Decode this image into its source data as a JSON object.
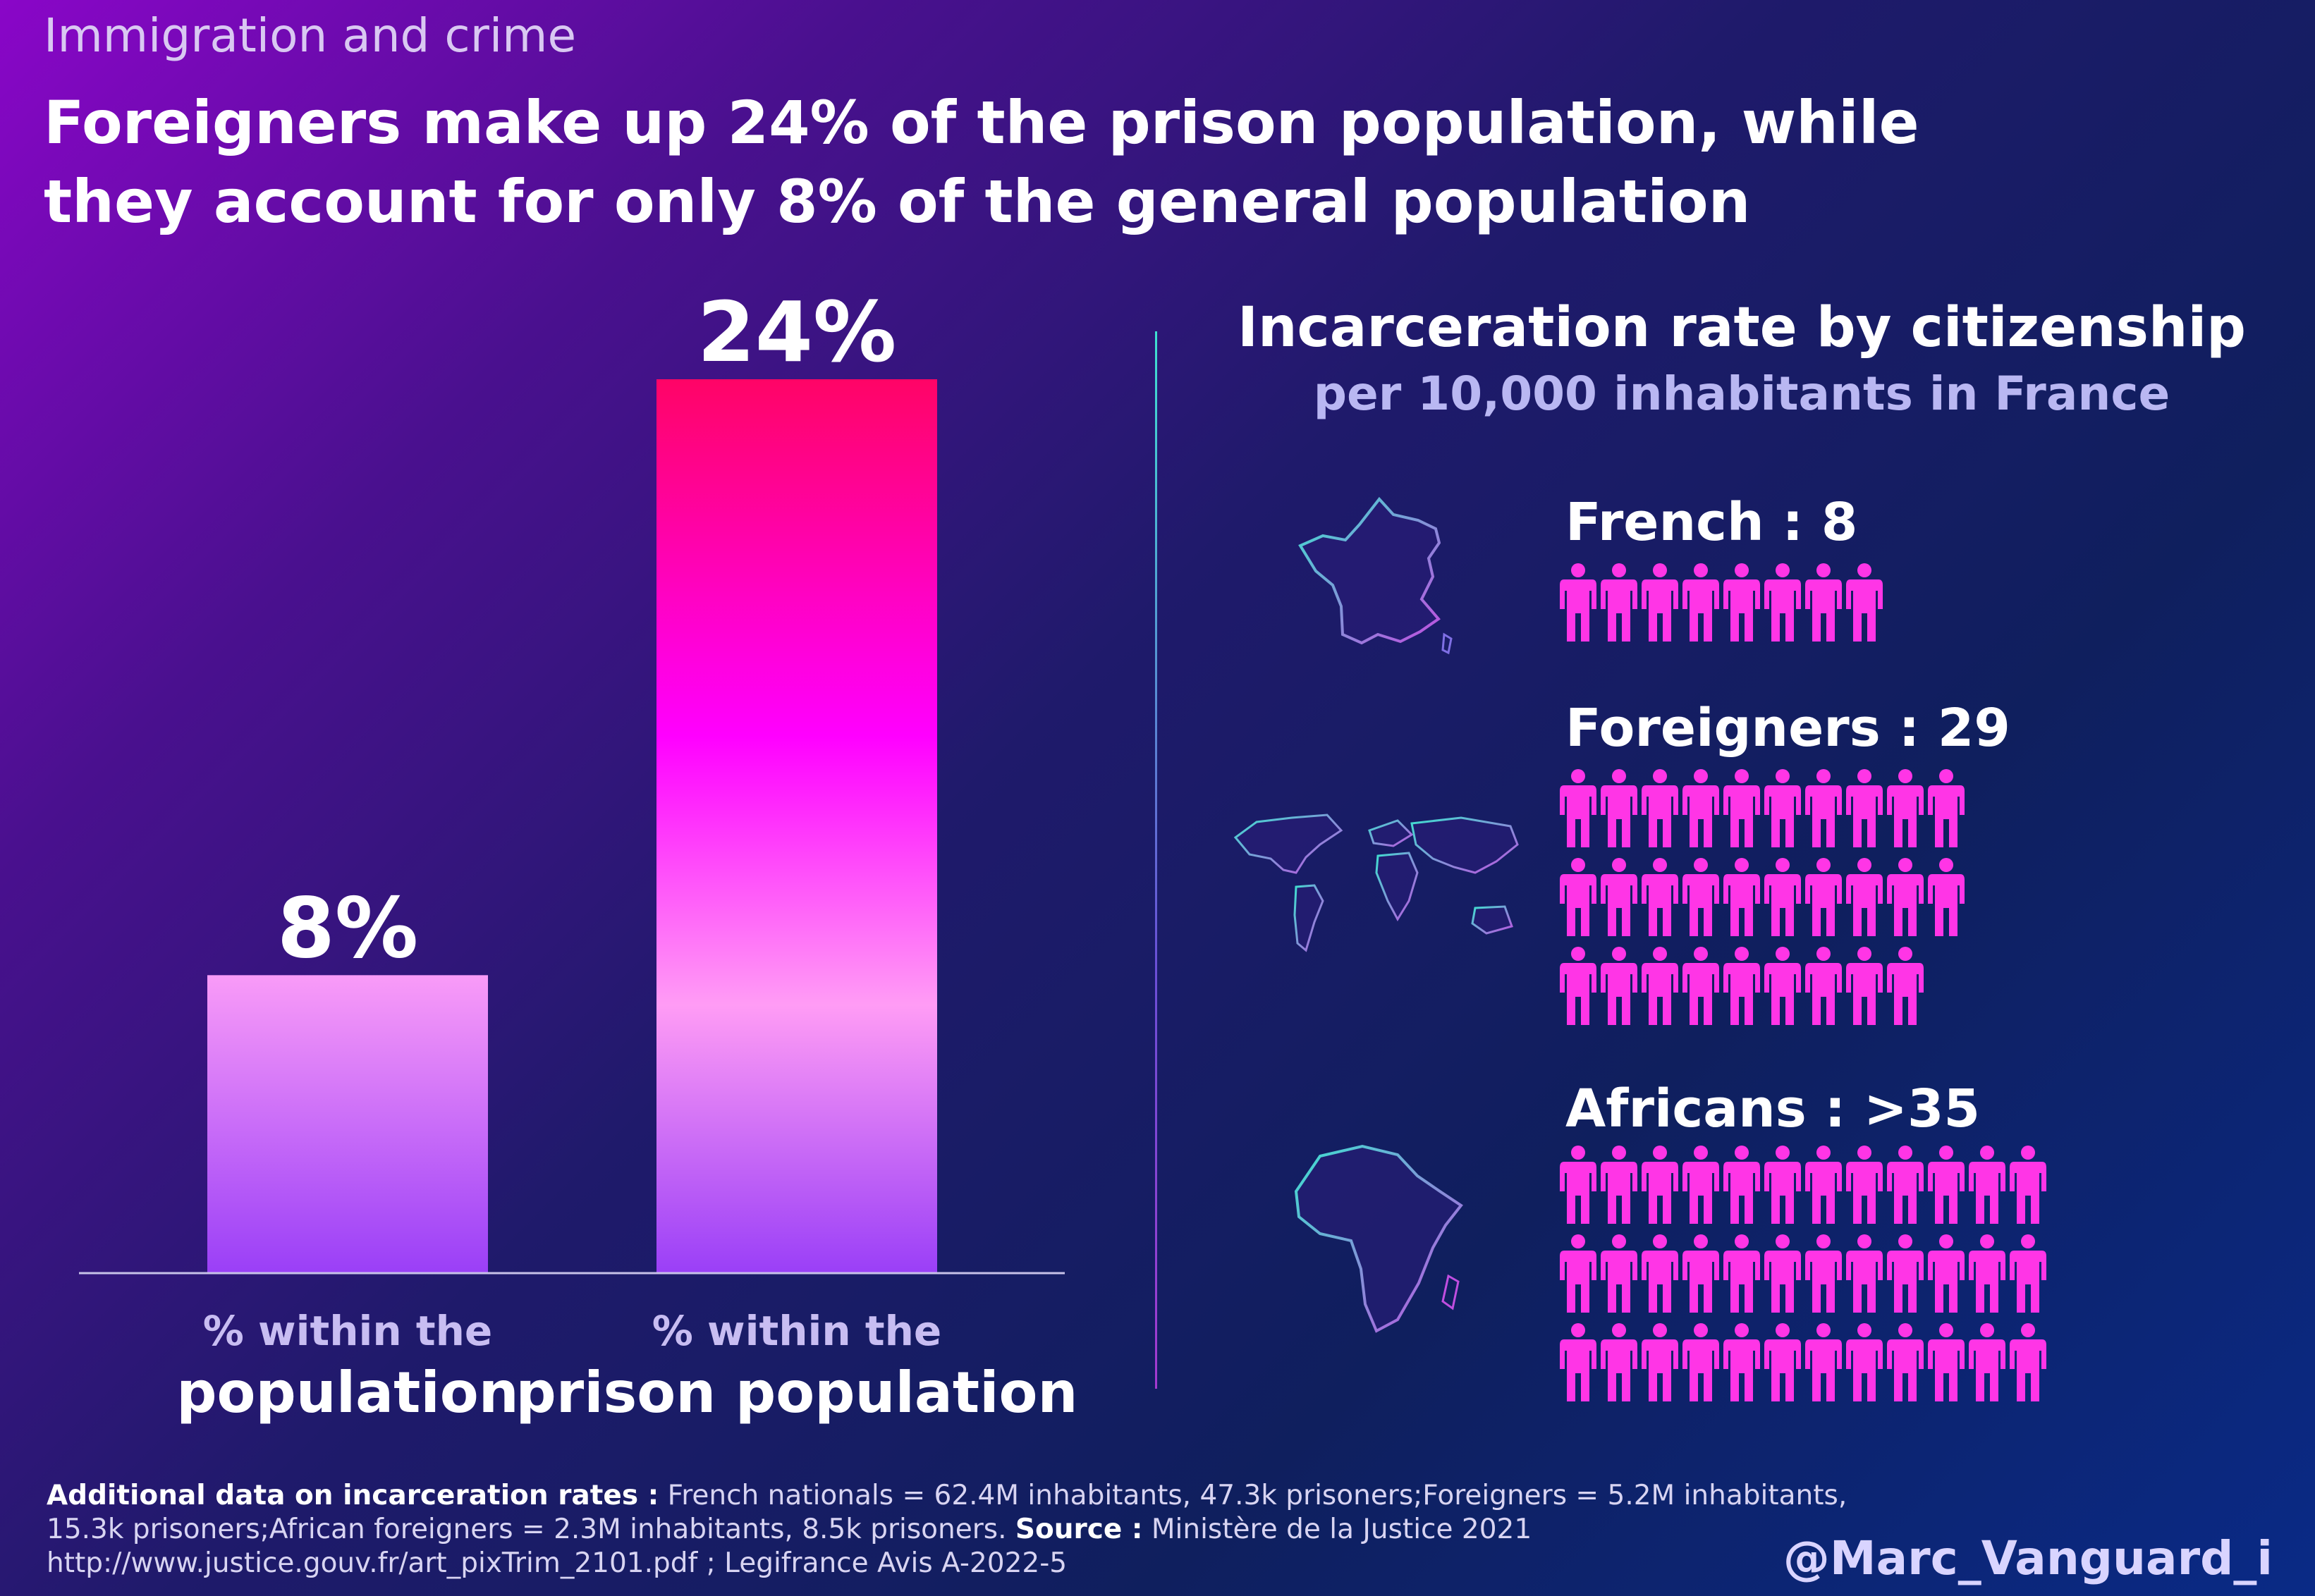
{
  "kicker": "Immigration and crime",
  "headline": "Foreigners make up 24% of the prison population, while they account for only 8% of the general population",
  "chart_data": [
    {
      "type": "bar",
      "categories": [
        "% within the population",
        "% within the prison population"
      ],
      "category_lines": [
        [
          "% within the",
          "population"
        ],
        [
          "% within the",
          "prison population"
        ]
      ],
      "values": [
        8,
        24
      ],
      "value_labels": [
        "8%",
        "24%"
      ],
      "ylim": [
        0,
        24
      ],
      "colors": {
        "bar1_top": "#f99bf8",
        "bar1_bottom": "#9a3ff7",
        "bar2_top": "#ff0466",
        "bar2_mid": "#ff00ff",
        "bar2_light": "#ff9cf5",
        "bar2_bottom": "#9a3ff7"
      }
    },
    {
      "type": "table",
      "title": "Incarceration rate by citizenship",
      "subtitle": "per 10,000 inhabitants in France",
      "rows": [
        {
          "label": "French : 8",
          "group": "French",
          "value": 8,
          "icons": 8,
          "map_icon": "france-map-icon"
        },
        {
          "label": "Foreigners : 29",
          "group": "Foreigners",
          "value": 29,
          "icons": 29,
          "map_icon": "world-map-icon"
        },
        {
          "label": "Africans : >35",
          "group": "Africans",
          "value": 35,
          "icons": 36,
          "map_icon": "africa-map-icon"
        }
      ],
      "icon_color": "#ff35e6"
    }
  ],
  "footnote": {
    "bold1": "Additional data on incarceration rates :",
    "text1": " French nationals = 62.4M inhabitants, 47.3k prisoners;Foreigners = 5.2M inhabitants, 15.3k prisoners;African foreigners = 2.3M inhabitants, 8.5k prisoners. ",
    "bold2": "Source :",
    "text2": " Ministère de la Justice 2021 http://www.justice.gouv.fr/art_pixTrim_2101.pdf ; Legifrance Avis A-2022-5"
  },
  "handle": "@Marc_Vanguard_i"
}
